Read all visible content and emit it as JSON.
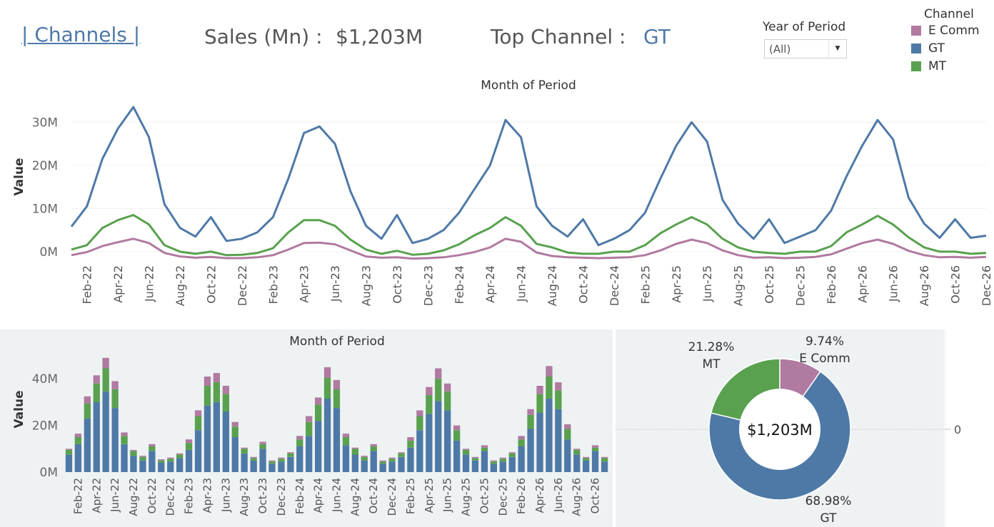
{
  "header": {
    "title_link": "| Channels |",
    "sales_label": "Sales (Mn) :",
    "sales_value": "$1,203M",
    "top_label": "Top Channel :",
    "top_value": "GT"
  },
  "filter": {
    "title": "Year of Period",
    "selected": "(All)",
    "arrow_icon": "dropdown-arrow-icon"
  },
  "legend": {
    "title": "Channel",
    "items": [
      {
        "label": "E Comm",
        "color": "#b07aa1"
      },
      {
        "label": "GT",
        "color": "#4e79a7"
      },
      {
        "label": "MT",
        "color": "#59a14f"
      }
    ]
  },
  "chart_data": [
    {
      "type": "line",
      "title": "Month of Period",
      "ylabel": "Value",
      "ylim": [
        -1.5,
        36
      ],
      "yticks": [
        {
          "value": 0,
          "label": "0M"
        },
        {
          "value": 10,
          "label": "10M"
        },
        {
          "value": 20,
          "label": "20M"
        },
        {
          "value": 30,
          "label": "30M"
        }
      ],
      "x": [
        "Jan-22",
        "Feb-22",
        "Mar-22",
        "Apr-22",
        "May-22",
        "Jun-22",
        "Jul-22",
        "Aug-22",
        "Sep-22",
        "Oct-22",
        "Nov-22",
        "Dec-22",
        "Jan-23",
        "Feb-23",
        "Mar-23",
        "Apr-23",
        "May-23",
        "Jun-23",
        "Jul-23",
        "Aug-23",
        "Sep-23",
        "Oct-23",
        "Nov-23",
        "Dec-23",
        "Jan-24",
        "Feb-24",
        "Mar-24",
        "Apr-24",
        "May-24",
        "Jun-24",
        "Jul-24",
        "Aug-24",
        "Sep-24",
        "Oct-24",
        "Nov-24",
        "Dec-24",
        "Jan-25",
        "Feb-25",
        "Mar-25",
        "Apr-25",
        "May-25",
        "Jun-25",
        "Jul-25",
        "Aug-25",
        "Sep-25",
        "Oct-25",
        "Nov-25",
        "Dec-25",
        "Jan-26",
        "Feb-26",
        "Mar-26",
        "Apr-26",
        "May-26",
        "Jun-26",
        "Jul-26",
        "Aug-26",
        "Sep-26",
        "Oct-26",
        "Nov-26",
        "Dec-26"
      ],
      "tick_labels": [
        "Feb-22",
        "Apr-22",
        "Jun-22",
        "Aug-22",
        "Oct-22",
        "Dec-22",
        "Feb-23",
        "Apr-23",
        "Jun-23",
        "Aug-23",
        "Oct-23",
        "Dec-23",
        "Feb-24",
        "Apr-24",
        "Jun-24",
        "Aug-24",
        "Oct-24",
        "Dec-24",
        "Feb-25",
        "Apr-25",
        "Jun-25",
        "Aug-25",
        "Oct-25",
        "Dec-25",
        "Feb-26",
        "Apr-26",
        "Jun-26",
        "Aug-26",
        "Oct-26",
        "Dec-26"
      ],
      "grid": true,
      "series": [
        {
          "name": "GT",
          "color": "#4e79a7",
          "values": [
            5.8,
            10.5,
            21.5,
            28.5,
            33.5,
            26.5,
            11,
            5.5,
            3.5,
            8,
            2.5,
            3,
            4.5,
            8,
            17,
            27.5,
            29,
            25,
            14,
            6,
            3,
            8.5,
            2,
            3,
            5,
            9,
            14.5,
            20,
            30.5,
            26.5,
            10.5,
            6,
            3.5,
            7.5,
            1.5,
            3,
            5,
            9,
            17,
            24.5,
            30,
            25.5,
            12,
            6.5,
            3,
            7.5,
            2,
            3.5,
            5,
            9.5,
            17.5,
            24.5,
            30.5,
            26,
            12.5,
            6.5,
            3.2,
            7.5,
            3.2,
            3.7
          ]
        },
        {
          "name": "MT",
          "color": "#59a14f",
          "values": [
            0.5,
            1.5,
            5.5,
            7.3,
            8.5,
            6.3,
            1.5,
            0,
            -0.5,
            0,
            -0.8,
            -0.7,
            -0.3,
            0.8,
            4.5,
            7.3,
            7.3,
            6,
            2.8,
            0.5,
            -0.5,
            0.2,
            -0.7,
            -0.5,
            0.3,
            1.7,
            3.8,
            5.5,
            8,
            6,
            1.8,
            1,
            -0.2,
            -0.5,
            -0.5,
            0,
            0,
            1.5,
            4.3,
            6.3,
            8,
            6.3,
            3,
            1,
            0,
            -0.3,
            -0.5,
            0,
            0,
            1.3,
            4.5,
            6.3,
            8.3,
            6.3,
            3.3,
            1,
            0,
            0,
            -0.5,
            -0.3
          ]
        },
        {
          "name": "E Comm",
          "color": "#b07aa1",
          "values": [
            -0.8,
            -0.1,
            1.3,
            2.2,
            3,
            2,
            -0.3,
            -1.1,
            -1.4,
            -1.2,
            -1.5,
            -1.5,
            -1.3,
            -0.8,
            0.5,
            2,
            2.1,
            1.7,
            0.3,
            -1.1,
            -1.4,
            -1.3,
            -1.6,
            -1.5,
            -1.3,
            -0.8,
            -0.1,
            1,
            3,
            2.3,
            -0.2,
            -1,
            -1.3,
            -1.4,
            -1.5,
            -1.4,
            -1.3,
            -0.8,
            0.3,
            1.8,
            2.8,
            2,
            0.3,
            -0.8,
            -1.4,
            -1.3,
            -1.5,
            -1.4,
            -1.2,
            -0.6,
            0.7,
            2,
            2.8,
            1.8,
            0.2,
            -0.8,
            -1.3,
            -1.2,
            -1.4,
            -1.2
          ]
        }
      ]
    },
    {
      "type": "bar",
      "stacked": true,
      "title": "Month of Period",
      "ylabel": "Value",
      "ylim": [
        0,
        52
      ],
      "yticks": [
        {
          "value": 0,
          "label": "0M"
        },
        {
          "value": 20,
          "label": "20M"
        },
        {
          "value": 40,
          "label": "40M"
        }
      ],
      "categories": [
        "Jan-22",
        "Feb-22",
        "Mar-22",
        "Apr-22",
        "May-22",
        "Jun-22",
        "Jul-22",
        "Aug-22",
        "Sep-22",
        "Oct-22",
        "Nov-22",
        "Dec-22",
        "Jan-23",
        "Feb-23",
        "Mar-23",
        "Apr-23",
        "May-23",
        "Jun-23",
        "Jul-23",
        "Aug-23",
        "Sep-23",
        "Oct-23",
        "Nov-23",
        "Dec-23",
        "Jan-24",
        "Feb-24",
        "Mar-24",
        "Apr-24",
        "May-24",
        "Jun-24",
        "Jul-24",
        "Aug-24",
        "Sep-24",
        "Oct-24",
        "Nov-24",
        "Dec-24",
        "Jan-25",
        "Feb-25",
        "Mar-25",
        "Apr-25",
        "May-25",
        "Jun-25",
        "Jul-25",
        "Aug-25",
        "Sep-25",
        "Oct-25",
        "Nov-25",
        "Dec-25",
        "Jan-26",
        "Feb-26",
        "Mar-26",
        "Apr-26",
        "May-26",
        "Jun-26",
        "Jul-26",
        "Aug-26",
        "Sep-26",
        "Oct-26",
        "Nov-26"
      ],
      "tick_labels": [
        "Feb-22",
        "Apr-22",
        "Jun-22",
        "Aug-22",
        "Oct-22",
        "Dec-22",
        "Feb-23",
        "Apr-23",
        "Jun-23",
        "Aug-23",
        "Oct-23",
        "Dec-23",
        "Feb-24",
        "Apr-24",
        "Jun-24",
        "Aug-24",
        "Oct-24",
        "Dec-24",
        "Feb-25",
        "Apr-25",
        "Jun-25",
        "Aug-25",
        "Oct-25",
        "Dec-25",
        "Feb-26",
        "Apr-26",
        "Jun-26",
        "Aug-26",
        "Oct-26"
      ],
      "series": [
        {
          "name": "GT",
          "color": "#4e79a7",
          "values": [
            7.5,
            12,
            23,
            30,
            34.5,
            27.5,
            12,
            7,
            5,
            9,
            4,
            4.5,
            6,
            9.5,
            18,
            28.5,
            30,
            26,
            15,
            8,
            5,
            10,
            3.5,
            4.5,
            6.5,
            11,
            15.5,
            22,
            31.5,
            27.5,
            11.5,
            7.5,
            5,
            9,
            3.5,
            4.5,
            6.5,
            10.5,
            18,
            25,
            30.5,
            26.5,
            13.5,
            7.5,
            5,
            9,
            3.5,
            4.5,
            6.5,
            11,
            18.5,
            25.5,
            31.5,
            27,
            14,
            7.5,
            5,
            9,
            4.5
          ]
        },
        {
          "name": "MT",
          "color": "#59a14f",
          "values": [
            2,
            3,
            6.5,
            8,
            10,
            8,
            3.5,
            2,
            1.5,
            2,
            1,
            1.2,
            1.5,
            3,
            6,
            8.5,
            8.5,
            7.5,
            4.5,
            2,
            1,
            2,
            1,
            1.2,
            1.5,
            3,
            6,
            7,
            9,
            8,
            3.5,
            2.5,
            1.5,
            2,
            1,
            1.2,
            1.5,
            3,
            6,
            8,
            9.5,
            8,
            4.5,
            2,
            1,
            1.5,
            1,
            1.2,
            1.5,
            3,
            6,
            8,
            9.5,
            8,
            4.5,
            2,
            1,
            1.5,
            1.5
          ]
        },
        {
          "name": "E Comm",
          "color": "#b07aa1",
          "values": [
            0.5,
            1.5,
            3,
            3.5,
            4.5,
            3.5,
            1.5,
            0.5,
            0.5,
            1,
            0.5,
            0.5,
            0.5,
            1.5,
            2.5,
            4,
            4,
            3.5,
            2,
            0.5,
            0.5,
            1,
            0.5,
            0.5,
            0.5,
            1.5,
            2.5,
            3,
            4.5,
            4,
            1.5,
            0.5,
            0.5,
            1,
            0.5,
            0.5,
            0.5,
            1.5,
            2.5,
            3.5,
            4.5,
            3.5,
            2,
            0.5,
            0.5,
            1,
            0.5,
            0.5,
            0.5,
            1.5,
            2.5,
            3.5,
            4.5,
            3.5,
            2,
            0.5,
            0.5,
            1,
            0.5
          ]
        }
      ]
    },
    {
      "type": "pie",
      "donut": true,
      "center_label": "$1,203M",
      "slices": [
        {
          "name": "E Comm",
          "pct_label": "9.74%",
          "value": 9.74,
          "color": "#b07aa1"
        },
        {
          "name": "GT",
          "pct_label": "68.98%",
          "value": 68.98,
          "color": "#4e79a7"
        },
        {
          "name": "MT",
          "pct_label": "21.28%",
          "value": 21.28,
          "color": "#59a14f"
        }
      ]
    }
  ],
  "side_axis": {
    "tick": "0",
    "label": "0"
  }
}
